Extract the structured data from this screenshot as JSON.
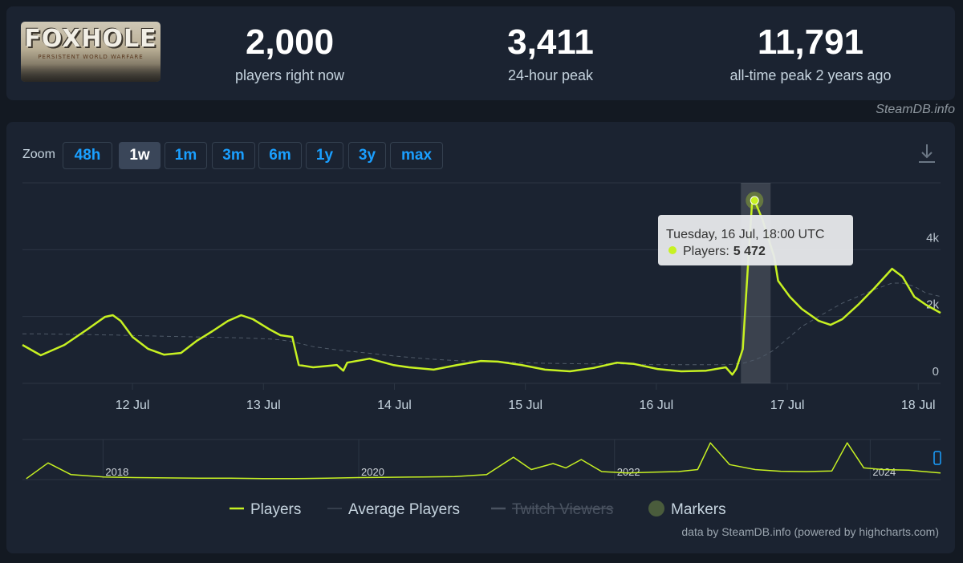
{
  "header": {
    "logo": {
      "title": "FOXHOLE",
      "subtitle": "PERSISTENT WORLD WARFARE"
    },
    "stats": [
      {
        "value": {
          "value": 2000,
          "label": "2,000"
        },
        "label": "players right now"
      },
      {
        "value": {
          "value": 3411,
          "label": "3,411"
        },
        "label": "24-hour peak"
      },
      {
        "value": {
          "value": 11791,
          "label": "11,791"
        },
        "label": "all-time peak 2 years ago"
      }
    ]
  },
  "source": "SteamDB.info",
  "zoom": {
    "label": "Zoom",
    "buttons": [
      "48h",
      "1w",
      "1m",
      "3m",
      "6m",
      "1y",
      "3y",
      "max"
    ],
    "active": "1w"
  },
  "chart_data": {
    "type": "line",
    "x": [
      11.16,
      11.3,
      11.48,
      11.66,
      11.79,
      11.85,
      11.91,
      12.0,
      12.12,
      12.24,
      12.37,
      12.49,
      12.61,
      12.73,
      12.83,
      12.92,
      13.04,
      13.13,
      13.22,
      13.27,
      13.38,
      13.56,
      13.61,
      13.64,
      13.81,
      13.99,
      14.11,
      14.3,
      14.48,
      14.66,
      14.79,
      14.97,
      15.15,
      15.34,
      15.52,
      15.7,
      15.83,
      16.01,
      16.19,
      16.38,
      16.53,
      16.58,
      16.61,
      16.66,
      16.7,
      16.73,
      16.75,
      16.81,
      16.9,
      16.93,
      17.02,
      17.11,
      17.24,
      17.33,
      17.42,
      17.54,
      17.66,
      17.8,
      17.88,
      17.97,
      18.06,
      18.17
    ],
    "xlim": [
      11.16,
      18.17
    ],
    "xticks": [
      {
        "value": 12,
        "label": "12 Jul"
      },
      {
        "value": 13,
        "label": "13 Jul"
      },
      {
        "value": 14,
        "label": "14 Jul"
      },
      {
        "value": 15,
        "label": "15 Jul"
      },
      {
        "value": 16,
        "label": "16 Jul"
      },
      {
        "value": 17,
        "label": "17 Jul"
      },
      {
        "value": 18,
        "label": "18 Jul"
      }
    ],
    "ylim": [
      0,
      6000
    ],
    "yticks": [
      0,
      {
        "value": 2000,
        "label": "2k"
      },
      {
        "value": 4000,
        "label": "4k"
      }
    ],
    "grid": true,
    "series": [
      {
        "name": "Players",
        "color": "#c7f122",
        "values": [
          1150,
          840,
          1150,
          1630,
          1990,
          2040,
          1870,
          1390,
          1030,
          860,
          910,
          1270,
          1560,
          1870,
          2040,
          1920,
          1630,
          1440,
          1390,
          550,
          480,
          550,
          380,
          620,
          740,
          550,
          480,
          410,
          550,
          670,
          650,
          550,
          410,
          360,
          460,
          620,
          580,
          430,
          360,
          380,
          480,
          260,
          430,
          1030,
          3550,
          5350,
          5472,
          4900,
          3790,
          3070,
          2590,
          2230,
          1870,
          1750,
          1920,
          2350,
          2830,
          3430,
          3190,
          2590,
          2350,
          2110
        ]
      },
      {
        "name": "Average Players",
        "color": "#4f5a68",
        "dash": true,
        "values": [
          1480,
          1480,
          1470,
          1460,
          1450,
          1450,
          1440,
          1430,
          1420,
          1410,
          1400,
          1390,
          1380,
          1370,
          1360,
          1350,
          1330,
          1300,
          1250,
          1200,
          1100,
          1000,
          980,
          970,
          900,
          820,
          780,
          720,
          680,
          660,
          650,
          620,
          600,
          590,
          580,
          580,
          570,
          560,
          560,
          560,
          560,
          570,
          580,
          600,
          640,
          680,
          700,
          800,
          1000,
          1100,
          1400,
          1700,
          2000,
          2200,
          2400,
          2600,
          2800,
          3000,
          3000,
          2900,
          2700,
          2600
        ]
      }
    ],
    "legend_extra": [
      {
        "name": "Twitch Viewers",
        "hidden": true
      },
      {
        "name": "Markers",
        "color": "#4a5c3c"
      }
    ],
    "tooltip": {
      "x": 16.75,
      "title": "Tuesday, 16 Jul, 18:00 UTC",
      "label": "Players:",
      "value_label": "5 472"
    },
    "navigator": {
      "x": [
        2017.4,
        2017.57,
        2017.75,
        2018,
        2018.25,
        2018.5,
        2018.75,
        2019,
        2019.25,
        2019.5,
        2019.75,
        2020,
        2020.25,
        2020.5,
        2020.75,
        2021,
        2021.21,
        2021.35,
        2021.52,
        2021.62,
        2021.74,
        2021.9,
        2022.1,
        2022.3,
        2022.5,
        2022.65,
        2022.75,
        2022.9,
        2023.1,
        2023.3,
        2023.5,
        2023.7,
        2023.82,
        2023.95,
        2024.1,
        2024.3,
        2024.55
      ],
      "values": [
        300,
        5000,
        1500,
        800,
        600,
        500,
        400,
        400,
        300,
        300,
        400,
        600,
        700,
        800,
        900,
        1500,
        6700,
        3000,
        4800,
        3500,
        6000,
        2400,
        2000,
        2200,
        2400,
        3000,
        11000,
        4500,
        3000,
        2500,
        2400,
        2600,
        11000,
        3500,
        3000,
        2800,
        2000
      ],
      "xlim": [
        2017.37,
        2024.55
      ],
      "xticks": [
        2018,
        2020,
        2022,
        2024
      ],
      "ylim": [
        0,
        12000
      ],
      "color": "#c7f122"
    },
    "credits": "data by SteamDB.info (powered by highcharts.com)"
  }
}
